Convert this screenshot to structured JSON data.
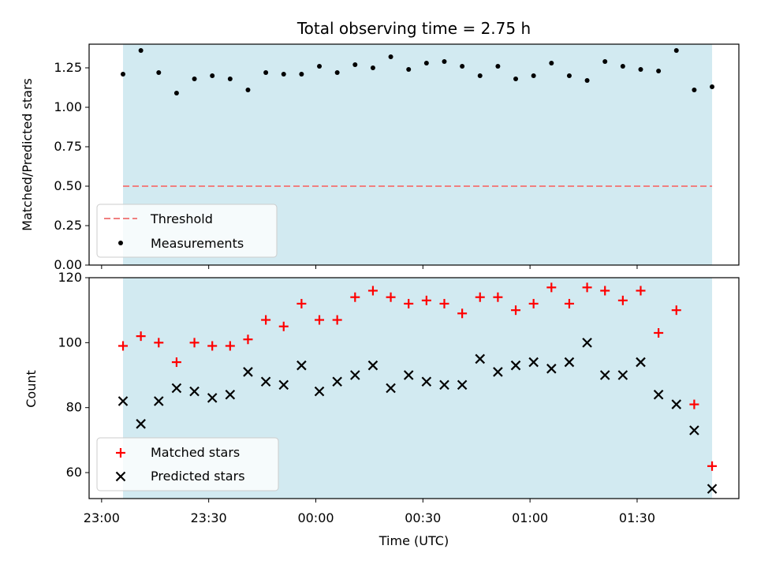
{
  "chart_data": [
    {
      "type": "scatter",
      "title": "Total observing time = 2.75 h",
      "ylabel": "Matched/Predicted stars",
      "xlabel": "",
      "ylim": [
        0,
        1.4
      ],
      "yticks": [
        "0.00",
        "0.25",
        "0.50",
        "0.75",
        "1.00",
        "1.25"
      ],
      "observing_window": [
        "23:06",
        "01:51"
      ],
      "threshold": 0.5,
      "legend_position": "lower-left",
      "legend": [
        "Threshold",
        "Measurements"
      ],
      "colors": {
        "threshold": "#f08080",
        "points": "#000000",
        "window": "#add8e6"
      },
      "series": [
        {
          "name": "Measurements",
          "x": [
            "23:06",
            "23:11",
            "23:16",
            "23:21",
            "23:26",
            "23:31",
            "23:36",
            "23:41",
            "23:46",
            "23:51",
            "23:56",
            "00:01",
            "00:06",
            "00:11",
            "00:16",
            "00:21",
            "00:26",
            "00:31",
            "00:36",
            "00:41",
            "00:46",
            "00:51",
            "00:56",
            "01:01",
            "01:06",
            "01:11",
            "01:16",
            "01:21",
            "01:26",
            "01:31",
            "01:36",
            "01:41",
            "01:46",
            "01:51"
          ],
          "y": [
            1.21,
            1.36,
            1.22,
            1.09,
            1.18,
            1.2,
            1.18,
            1.11,
            1.22,
            1.21,
            1.21,
            1.26,
            1.22,
            1.27,
            1.25,
            1.32,
            1.24,
            1.28,
            1.29,
            1.26,
            1.2,
            1.26,
            1.18,
            1.2,
            1.28,
            1.2,
            1.17,
            1.29,
            1.26,
            1.24,
            1.23,
            1.36,
            1.11,
            1.13
          ]
        }
      ]
    },
    {
      "type": "scatter",
      "ylabel": "Count",
      "xlabel": "Time (UTC)",
      "ylim": [
        52,
        120
      ],
      "yticks": [
        "60",
        "80",
        "100",
        "120"
      ],
      "xticks": [
        "23:00",
        "23:30",
        "00:00",
        "00:30",
        "01:00",
        "01:30"
      ],
      "legend_position": "lower-left",
      "legend": [
        "Matched stars",
        "Predicted stars"
      ],
      "colors": {
        "matched": "#ff0000",
        "predicted": "#000000",
        "window": "#add8e6"
      },
      "x": [
        "23:06",
        "23:11",
        "23:16",
        "23:21",
        "23:26",
        "23:31",
        "23:36",
        "23:41",
        "23:46",
        "23:51",
        "23:56",
        "00:01",
        "00:06",
        "00:11",
        "00:16",
        "00:21",
        "00:26",
        "00:31",
        "00:36",
        "00:41",
        "00:46",
        "00:51",
        "00:56",
        "01:01",
        "01:06",
        "01:11",
        "01:16",
        "01:21",
        "01:26",
        "01:31",
        "01:36",
        "01:41",
        "01:46",
        "01:51"
      ],
      "series": [
        {
          "name": "Matched stars",
          "marker": "+",
          "values": [
            99,
            102,
            100,
            94,
            100,
            99,
            99,
            101,
            107,
            105,
            112,
            107,
            107,
            114,
            116,
            114,
            112,
            113,
            112,
            109,
            114,
            114,
            110,
            112,
            117,
            112,
            117,
            116,
            113,
            116,
            103,
            110,
            81,
            62
          ]
        },
        {
          "name": "Predicted stars",
          "marker": "x",
          "values": [
            82,
            75,
            82,
            86,
            85,
            83,
            84,
            91,
            88,
            87,
            93,
            85,
            88,
            90,
            93,
            86,
            90,
            88,
            87,
            87,
            95,
            91,
            93,
            94,
            92,
            94,
            100,
            90,
            90,
            94,
            84,
            81,
            73,
            55
          ]
        }
      ]
    }
  ]
}
